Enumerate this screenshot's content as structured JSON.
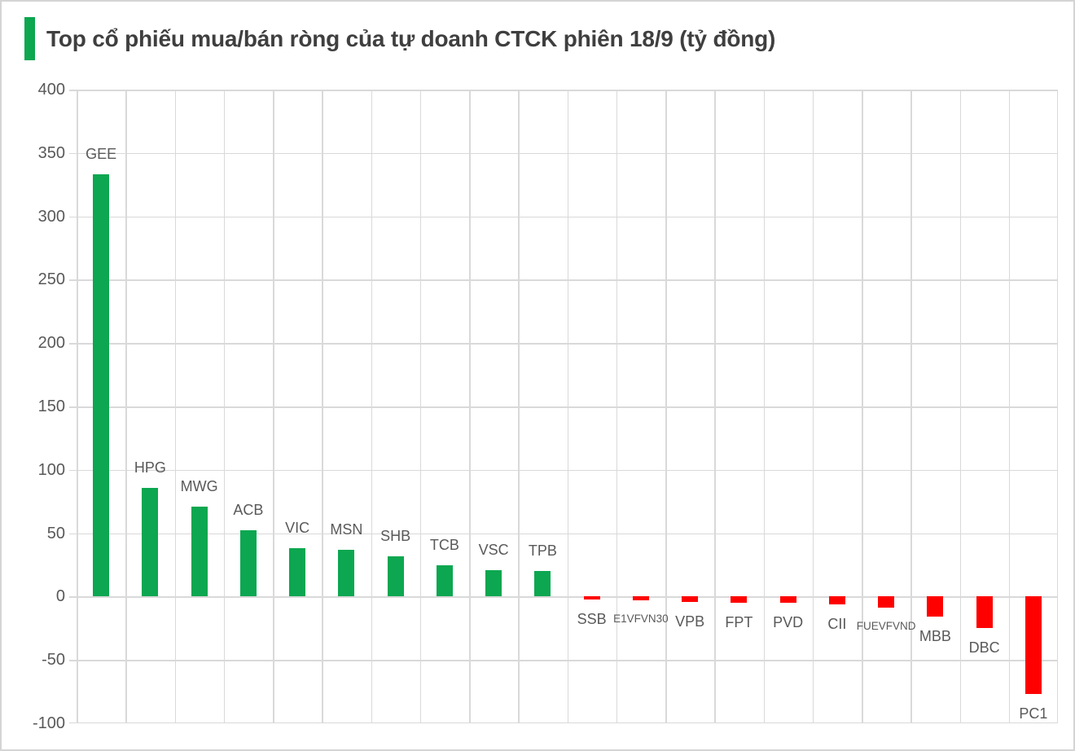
{
  "title": {
    "text": "Top cổ phiếu mua/bán ròng của tự doanh CTCK phiên 18/9 (tỷ đồng)"
  },
  "colors": {
    "positive_bar": "#0CA750",
    "negative_bar": "#FF0000",
    "gridline": "#D9D9D9",
    "axis_text": "#595959",
    "title_text": "#3F3F3F",
    "accent_bar": "#0CA750",
    "frame_border": "#D4D4D4",
    "background": "#FFFFFF"
  },
  "chart_data": {
    "type": "bar",
    "title": "Top cổ phiếu mua/bán ròng của tự doanh CTCK phiên 18/9 (tỷ đồng)",
    "unit": "tỷ đồng",
    "categories": [
      "GEE",
      "HPG",
      "MWG",
      "ACB",
      "VIC",
      "MSN",
      "SHB",
      "TCB",
      "VSC",
      "TPB",
      "SSB",
      "E1VFVN30",
      "VPB",
      "FPT",
      "PVD",
      "CII",
      "FUEVFVND",
      "MBB",
      "DBC",
      "PC1"
    ],
    "values": [
      333,
      86,
      71,
      52,
      38,
      37,
      32,
      25,
      21,
      20,
      -2,
      -3,
      -4,
      -5,
      -5,
      -6,
      -9,
      -16,
      -25,
      -77
    ],
    "xlabel": "",
    "ylabel": "",
    "ylim": [
      -100,
      400
    ],
    "ytick_step": 50,
    "grid": true,
    "legend": "none",
    "label_placement": "positive labels above bars, negative labels below bars"
  }
}
